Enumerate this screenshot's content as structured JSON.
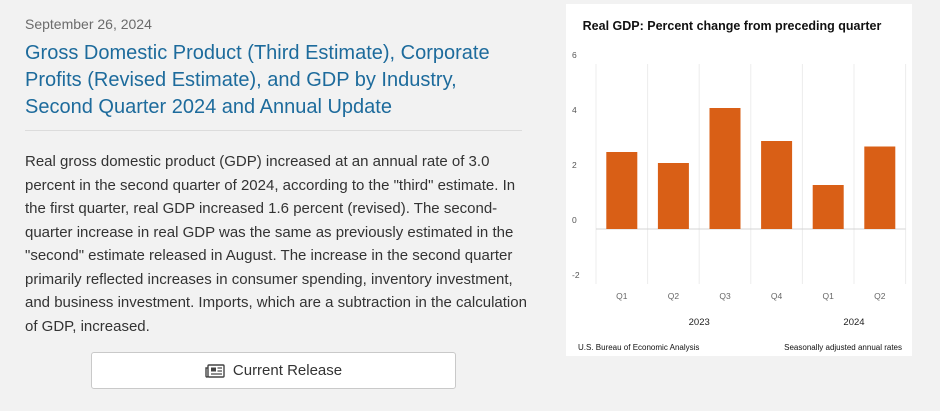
{
  "article": {
    "date": "September 26, 2024",
    "title": "Gross Domestic Product (Third Estimate), Corporate Profits (Revised Estimate), and GDP by Industry, Second Quarter 2024 and Annual Update",
    "body": "Real gross domestic product (GDP) increased at an annual rate of 3.0 percent in the second quarter of 2024, according to the \"third\" estimate. In the first quarter, real GDP increased 1.6 percent (revised). The second-quarter increase in real GDP was the same as previously estimated in the \"second\" estimate released in August. The increase in the second quarter primarily reflected increases in consumer spending, inventory investment, and business investment. Imports, which are a subtraction in the calculation of GDP, increased.",
    "button_label": "Current Release",
    "button_icon": "newspaper-icon"
  },
  "colors": {
    "title": "#1d6b9c",
    "bar": "#d95f16",
    "text": "#333333"
  },
  "chart_data": {
    "type": "bar",
    "title": "Real GDP:  Percent change from preceding quarter",
    "categories": [
      "Q1",
      "Q2",
      "Q3",
      "Q4",
      "Q1",
      "Q2"
    ],
    "year_groups": [
      {
        "label": "2023",
        "count": 4
      },
      {
        "label": "2024",
        "count": 2
      }
    ],
    "values": [
      2.8,
      2.4,
      4.4,
      3.2,
      1.6,
      3.0
    ],
    "y_ticks": [
      6,
      4,
      2,
      0,
      -2
    ],
    "ylim": [
      -2,
      6
    ],
    "xlabel": "",
    "ylabel": "",
    "source": "U.S. Bureau of Economic Analysis",
    "note": "Seasonally adjusted annual rates",
    "grid": "vertical"
  }
}
